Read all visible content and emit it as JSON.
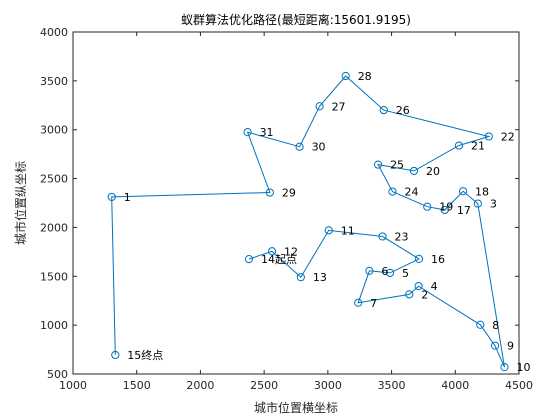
{
  "chart_data": {
    "type": "line",
    "title": "蚁群算法优化路径(最短距离:15601.9195)",
    "xlabel": "城市位置横坐标",
    "ylabel": "城市位置纵坐标",
    "xlim": [
      1000,
      4500
    ],
    "ylim": [
      500,
      4000
    ],
    "xticks": [
      "1000",
      "1500",
      "2000",
      "2500",
      "3000",
      "3500",
      "4000",
      "4500"
    ],
    "yticks": [
      "500",
      "1000",
      "1500",
      "2000",
      "2500",
      "3000",
      "3500",
      "4000"
    ],
    "line_color": "#0072BD",
    "marker": "circle",
    "grid": false,
    "cities": [
      {
        "id": "1",
        "x": 1304,
        "y": 2312
      },
      {
        "id": "2",
        "x": 3639,
        "y": 1315
      },
      {
        "id": "3",
        "x": 4177,
        "y": 2244
      },
      {
        "id": "4",
        "x": 3712,
        "y": 1399
      },
      {
        "id": "5",
        "x": 3488,
        "y": 1535
      },
      {
        "id": "6",
        "x": 3326,
        "y": 1556
      },
      {
        "id": "7",
        "x": 3238,
        "y": 1229
      },
      {
        "id": "8",
        "x": 4196,
        "y": 1004
      },
      {
        "id": "9",
        "x": 4312,
        "y": 790
      },
      {
        "id": "10",
        "x": 4386,
        "y": 570
      },
      {
        "id": "11",
        "x": 3007,
        "y": 1970
      },
      {
        "id": "12",
        "x": 2562,
        "y": 1756
      },
      {
        "id": "13",
        "x": 2788,
        "y": 1491
      },
      {
        "id": "14",
        "x": 2381,
        "y": 1676
      },
      {
        "id": "15",
        "x": 1332,
        "y": 695
      },
      {
        "id": "16",
        "x": 3715,
        "y": 1678
      },
      {
        "id": "17",
        "x": 3918,
        "y": 2179
      },
      {
        "id": "18",
        "x": 4061,
        "y": 2370
      },
      {
        "id": "19",
        "x": 3780,
        "y": 2212
      },
      {
        "id": "20",
        "x": 3676,
        "y": 2578
      },
      {
        "id": "21",
        "x": 4029,
        "y": 2838
      },
      {
        "id": "22",
        "x": 4263,
        "y": 2931
      },
      {
        "id": "23",
        "x": 3429,
        "y": 1908
      },
      {
        "id": "24",
        "x": 3507,
        "y": 2367
      },
      {
        "id": "25",
        "x": 3394,
        "y": 2643
      },
      {
        "id": "26",
        "x": 3439,
        "y": 3201
      },
      {
        "id": "27",
        "x": 2935,
        "y": 3240
      },
      {
        "id": "28",
        "x": 3140,
        "y": 3550
      },
      {
        "id": "29",
        "x": 2545,
        "y": 2357
      },
      {
        "id": "30",
        "x": 2778,
        "y": 2826
      },
      {
        "id": "31",
        "x": 2370,
        "y": 2975
      }
    ],
    "route": [
      "14",
      "12",
      "13",
      "11",
      "23",
      "16",
      "5",
      "6",
      "7",
      "2",
      "4",
      "8",
      "9",
      "10",
      "3",
      "18",
      "17",
      "19",
      "24",
      "25",
      "20",
      "21",
      "22",
      "26",
      "28",
      "27",
      "30",
      "31",
      "29",
      "1",
      "15"
    ],
    "labels": [
      {
        "id": "1",
        "text": "1"
      },
      {
        "id": "2",
        "text": "2"
      },
      {
        "id": "3",
        "text": "3"
      },
      {
        "id": "4",
        "text": "4"
      },
      {
        "id": "5",
        "text": "5"
      },
      {
        "id": "6",
        "text": "6"
      },
      {
        "id": "7",
        "text": "7"
      },
      {
        "id": "8",
        "text": "8"
      },
      {
        "id": "9",
        "text": "9"
      },
      {
        "id": "10",
        "text": "10"
      },
      {
        "id": "11",
        "text": "11"
      },
      {
        "id": "12",
        "text": "12"
      },
      {
        "id": "13",
        "text": "13"
      },
      {
        "id": "14",
        "text": "14起点"
      },
      {
        "id": "15",
        "text": "15终点"
      },
      {
        "id": "16",
        "text": "16"
      },
      {
        "id": "17",
        "text": "17"
      },
      {
        "id": "18",
        "text": "18"
      },
      {
        "id": "19",
        "text": "19"
      },
      {
        "id": "20",
        "text": "20"
      },
      {
        "id": "21",
        "text": "21"
      },
      {
        "id": "22",
        "text": "22"
      },
      {
        "id": "23",
        "text": "23"
      },
      {
        "id": "24",
        "text": "24"
      },
      {
        "id": "25",
        "text": "25"
      },
      {
        "id": "26",
        "text": "26"
      },
      {
        "id": "27",
        "text": "27"
      },
      {
        "id": "28",
        "text": "28"
      },
      {
        "id": "29",
        "text": "29"
      },
      {
        "id": "30",
        "text": "30"
      },
      {
        "id": "31",
        "text": "31"
      }
    ]
  }
}
